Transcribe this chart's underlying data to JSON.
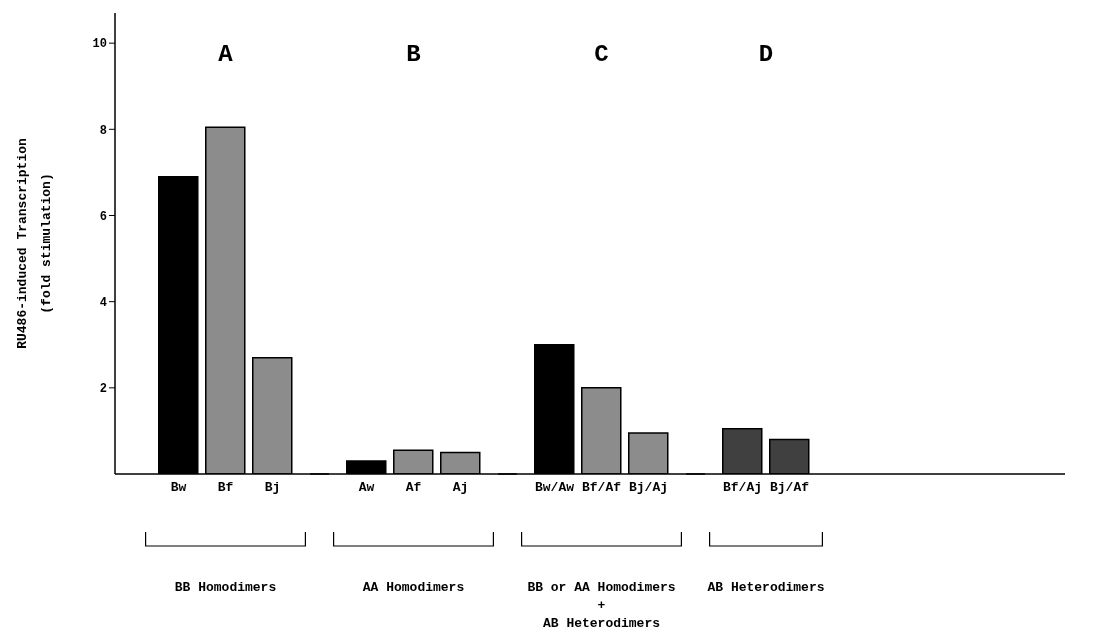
{
  "chart_data": {
    "type": "bar",
    "ylabel": "RU486-induced Transcription\n(fold stimulation)",
    "categories": [
      "Bw",
      "Bf",
      "Bj",
      null,
      "Aw",
      "Af",
      "Aj",
      null,
      "Bw/Aw",
      "Bf/Af",
      "Bj/Aj",
      null,
      "Bf/Aj",
      "Bj/Af"
    ],
    "values": [
      6.9,
      8.05,
      2.7,
      null,
      0.3,
      0.55,
      0.5,
      null,
      3.0,
      2.0,
      0.95,
      null,
      1.05,
      0.8
    ],
    "colors": [
      "#000000",
      "#8c8c8c",
      "#8c8c8c",
      null,
      "#000000",
      "#8c8c8c",
      "#8c8c8c",
      null,
      "#000000",
      "#8c8c8c",
      "#8c8c8c",
      null,
      "#404040",
      "#404040"
    ],
    "ylim": [
      0,
      10.7
    ],
    "yticks": [
      2,
      4,
      6,
      8,
      10
    ],
    "grid": false,
    "legend": false,
    "annotations": [
      "A",
      "B",
      "C",
      "D",
      "BB Homodimers",
      "AA Homodimers",
      "BB or AA Homodimers\n+\nAB Heterodimers",
      "AB Heterodimers"
    ]
  }
}
